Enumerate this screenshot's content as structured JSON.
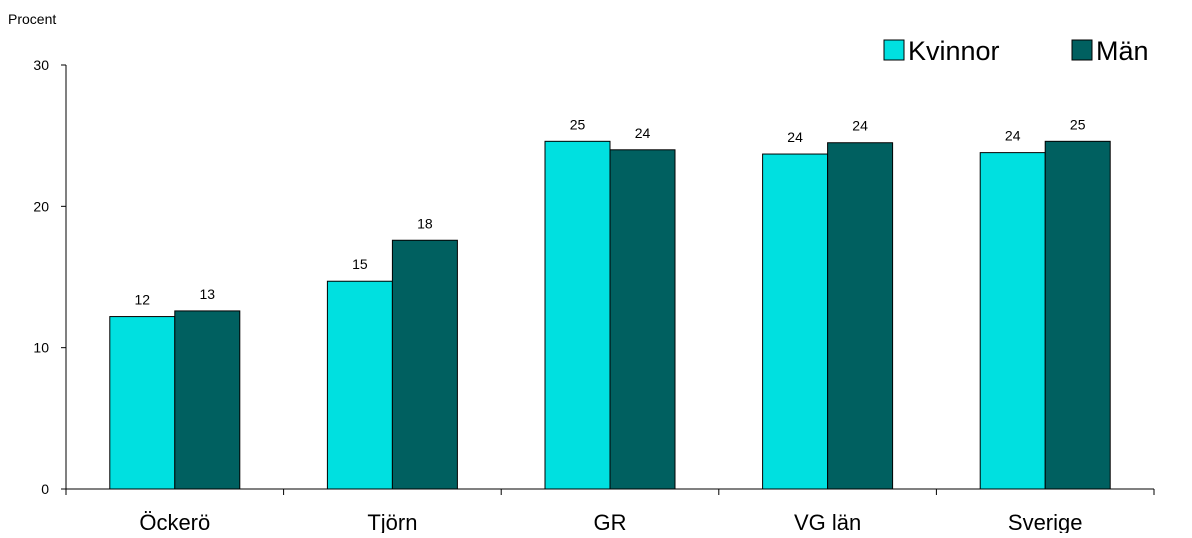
{
  "chart_data": {
    "type": "bar",
    "ylabel": "Procent",
    "ylim": [
      0,
      30
    ],
    "yticks": [
      0,
      10,
      20,
      30
    ],
    "categories": [
      "Öckerö",
      "Tjörn",
      "GR",
      "VG län",
      "Sverige"
    ],
    "series": [
      {
        "name": "Kvinnor",
        "values": [
          12.2,
          14.7,
          24.6,
          23.7,
          23.8
        ],
        "labels": [
          "12",
          "15",
          "25",
          "24",
          "24"
        ],
        "color": "#00E0E0"
      },
      {
        "name": "Män",
        "values": [
          12.6,
          17.6,
          24.0,
          24.5,
          24.6
        ],
        "labels": [
          "13",
          "18",
          "24",
          "24",
          "25"
        ],
        "color": "#006060"
      }
    ],
    "legend_position": "top-right",
    "grid": false
  }
}
